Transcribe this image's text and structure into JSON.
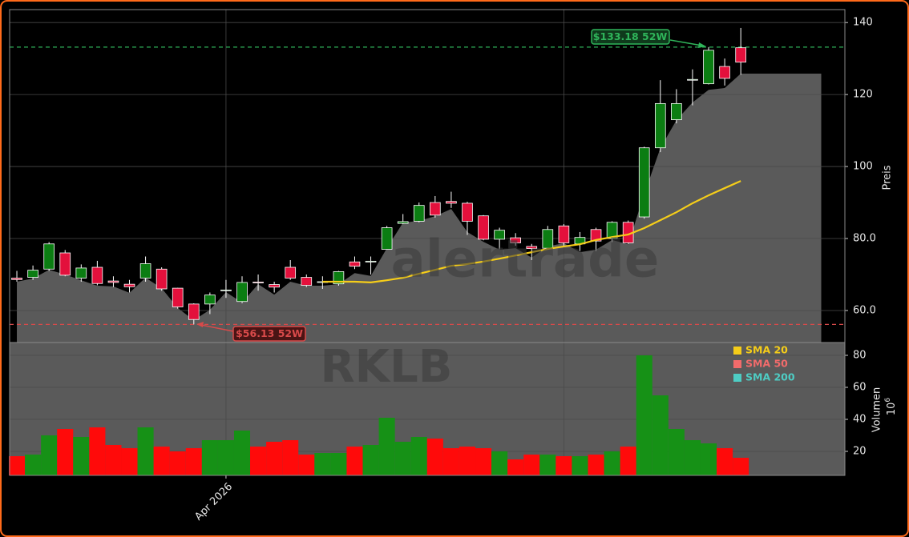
{
  "chart_data": {
    "type": "candlestick",
    "open": [
      69.0,
      69.2,
      71.5,
      76.0,
      69.0,
      72.0,
      68.2,
      67.3,
      69.0,
      71.5,
      66.2,
      61.8,
      61.8,
      65.5,
      62.5,
      67.9,
      67.2,
      72.0,
      69.2,
      68.0,
      67.4,
      73.5,
      73.6,
      77.0,
      84.2,
      84.8,
      90.0,
      90.3,
      89.8,
      86.3,
      79.8,
      80.2,
      77.8,
      77.3,
      83.5,
      78.5,
      82.5,
      80.0,
      84.5,
      86.0,
      105.2,
      113.0,
      124.0,
      123.0,
      127.8,
      133.0
    ],
    "high": [
      71.0,
      72.5,
      79.0,
      76.8,
      72.8,
      73.8,
      69.5,
      68.5,
      75.0,
      72.0,
      66.3,
      62.0,
      65.0,
      68.5,
      69.5,
      70.0,
      68.0,
      74.0,
      70.0,
      69.5,
      71.0,
      75.0,
      75.0,
      83.5,
      86.8,
      90.0,
      91.8,
      93.0,
      90.2,
      86.5,
      83.0,
      81.5,
      78.5,
      83.5,
      84.0,
      81.8,
      83.0,
      84.8,
      85.0,
      105.5,
      124.0,
      121.5,
      127.0,
      133.18,
      130.0,
      138.5
    ],
    "low": [
      68.0,
      68.5,
      71.0,
      69.5,
      68.0,
      67.0,
      66.5,
      65.0,
      68.0,
      65.5,
      60.5,
      56.13,
      59.0,
      63.5,
      62.0,
      65.5,
      65.0,
      68.5,
      66.5,
      66.0,
      66.9,
      71.5,
      70.0,
      77.0,
      84.0,
      84.5,
      85.8,
      88.5,
      81.0,
      79.5,
      77.0,
      78.0,
      74.0,
      77.0,
      78.0,
      76.5,
      76.5,
      79.0,
      78.5,
      85.5,
      104.0,
      112.0,
      117.0,
      122.8,
      122.5,
      125.5
    ],
    "close": [
      68.6,
      71.2,
      78.5,
      69.8,
      71.8,
      67.5,
      67.8,
      66.6,
      73.0,
      66.0,
      61.0,
      57.5,
      64.3,
      65.7,
      67.8,
      67.7,
      66.5,
      69.0,
      67.0,
      68.0,
      70.8,
      72.3,
      73.7,
      83.0,
      84.7,
      89.2,
      86.5,
      89.8,
      84.8,
      79.8,
      82.3,
      78.8,
      77.2,
      82.5,
      78.8,
      80.3,
      79.3,
      84.5,
      78.8,
      105.2,
      117.5,
      117.5,
      124.2,
      132.3,
      124.5,
      129.0
    ],
    "volume": [
      17,
      18,
      30,
      34,
      29,
      35,
      24,
      22,
      35,
      23,
      20,
      22,
      27,
      27,
      33,
      23,
      26,
      27,
      18,
      19,
      19,
      23,
      24,
      41,
      26,
      29,
      28,
      22,
      23,
      22,
      20,
      15,
      18,
      18,
      17,
      17,
      18,
      20,
      23,
      80,
      55,
      34,
      27,
      25,
      22,
      16
    ],
    "area": [
      68.0,
      68.9,
      71.3,
      70.0,
      68.4,
      66.9,
      66.7,
      64.9,
      69.1,
      66.2,
      60.7,
      57.3,
      60.2,
      65.1,
      62.2,
      67.3,
      64.4,
      68.0,
      66.9,
      66.9,
      67.3,
      70.4,
      69.6,
      77.3,
      84.4,
      84.9,
      86.2,
      88.2,
      81.8,
      79.1,
      76.9,
      77.3,
      74.7,
      77.8,
      78.7,
      76.2,
      76.9,
      79.6,
      78.4,
      92.4,
      105.1,
      112.9,
      117.8,
      121.3,
      121.8,
      125.8,
      125.8,
      125.8,
      125.8,
      125.8,
      125.8
    ],
    "sma20": [
      null,
      null,
      null,
      null,
      null,
      null,
      null,
      null,
      null,
      null,
      null,
      null,
      null,
      null,
      null,
      null,
      null,
      null,
      null,
      68.0,
      68.0,
      68.0,
      67.8,
      68.4,
      69.1,
      70.2,
      71.3,
      72.4,
      72.9,
      73.6,
      74.4,
      75.3,
      76.2,
      77.1,
      77.8,
      78.4,
      79.6,
      80.4,
      81.1,
      82.9,
      85.1,
      87.3,
      89.8,
      92.0,
      94.0,
      96.0
    ],
    "up_color": "#0b7d12",
    "down_color": "#e3103c",
    "volume_up_color": "#169116",
    "volume_down_color": "#ff0a0a",
    "sma20_color": "#f5cd19",
    "xlim": [
      -0.45,
      51.47
    ],
    "xticks": [
      {
        "value": 13,
        "label": "Apr 2026"
      }
    ],
    "xgrid": [
      13,
      34
    ],
    "ylim": [
      51.1,
      143.6
    ],
    "yticks": [
      140,
      120,
      100,
      {
        "value": 80,
        "label": "80.0"
      },
      {
        "value": 60,
        "label": "60.0"
      }
    ],
    "ylabel": "Preis",
    "vol_ylim": [
      5,
      88
    ],
    "vol_yticks": [
      80,
      60,
      40,
      20
    ],
    "vol_ylabel": "Volumen",
    "vol_unit": "10",
    "vol_unit_exp": "6",
    "high_line": {
      "value": 133.18,
      "label": "$133.18 52W",
      "color": "#2fb45a"
    },
    "low_line": {
      "value": 56.13,
      "label": "$56.13 52W",
      "color": "#d84a4a"
    },
    "legend": [
      {
        "name": "SMA 20",
        "color": "#f5cd19"
      },
      {
        "name": "SMA 50",
        "color": "#f26b6b"
      },
      {
        "name": "SMA 200",
        "color": "#4ecdc4"
      }
    ],
    "watermark": "alertrade",
    "symbol": "RKLB"
  }
}
